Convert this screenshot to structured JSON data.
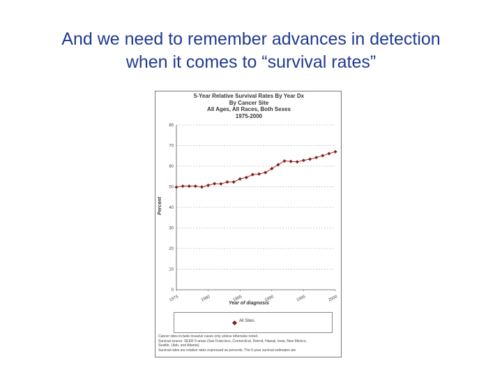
{
  "slide": {
    "title_line1": "And we need to remember advances in detection",
    "title_line2": "when it comes to “survival rates”"
  },
  "chart_data": {
    "type": "line",
    "title_lines": [
      "5-Year Relative Survival Rates By Year Dx",
      "By Cancer Site",
      "All Ages, All Races, Both Sexes",
      "1975-2000"
    ],
    "xlabel": "Year of diagnosis",
    "ylabel": "Percent",
    "xlim": [
      1975,
      2000
    ],
    "ylim": [
      0,
      80
    ],
    "x_ticks": [
      1975,
      1980,
      1985,
      1990,
      1995,
      2000
    ],
    "y_ticks": [
      0,
      10,
      20,
      30,
      40,
      50,
      60,
      70,
      80
    ],
    "grid": true,
    "legend_position": "bottom",
    "series": [
      {
        "name": "All Sites",
        "color": "#8b1a1a",
        "x": [
          1975,
          1976,
          1977,
          1978,
          1979,
          1980,
          1981,
          1982,
          1983,
          1984,
          1985,
          1986,
          1987,
          1988,
          1989,
          1990,
          1991,
          1992,
          1993,
          1994,
          1995,
          1996,
          1997,
          1998,
          1999,
          2000
        ],
        "values": [
          49.8,
          50.3,
          50.3,
          50.3,
          49.9,
          50.7,
          51.5,
          51.4,
          52.3,
          52.3,
          53.8,
          54.5,
          55.9,
          56.2,
          56.9,
          58.8,
          60.7,
          62.5,
          62.3,
          62.1,
          62.8,
          63.4,
          64.2,
          65.1,
          66.1,
          67.0
        ]
      }
    ]
  },
  "footnote_lines": [
    "Cancer sites include invasive cases only unless otherwise noted.",
    "Survival source: SEER 9 areas (San Francisco, Connecticut, Detroit, Hawaii, Iowa, New Mexico,",
    "Seattle, Utah, and Atlanta).",
    "Survival rates are relative rates expressed as percents. The 5-year survival estimates are"
  ]
}
